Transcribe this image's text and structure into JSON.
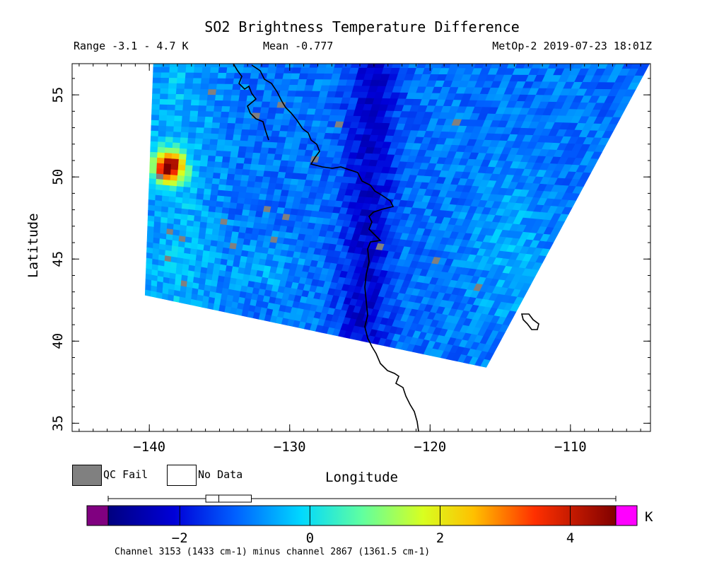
{
  "header": {
    "title": "SO2 Brightness Temperature Difference",
    "range": "Range -3.1 - 4.7 K",
    "mean": "Mean -0.777",
    "satellite": "MetOp-2 2019-07-23 18:01Z"
  },
  "axes": {
    "xlabel": "Longitude",
    "ylabel": "Latitude",
    "x_ticks": [
      -140,
      -130,
      -120,
      -110
    ],
    "y_ticks": [
      35,
      40,
      45,
      50,
      55
    ],
    "x_range": [
      -145.5,
      -104.3
    ],
    "y_range": [
      34.5,
      56.9
    ]
  },
  "legend": {
    "qc_fail": "QC Fail",
    "no_data": "No Data",
    "qc_color": "#808080"
  },
  "colorbar": {
    "unit": "K",
    "range": [
      -3.1,
      4.7
    ],
    "ticks": [
      -2,
      0,
      2,
      4
    ],
    "under_color": "#800080",
    "over_color": "#ff00ff",
    "note": "Channel 3153 (1433 cm-1) minus channel 2867 (1361.5 cm-1)",
    "box_whisker": {
      "min": -3.1,
      "q1": -1.6,
      "median": -1.4,
      "q3": -0.9,
      "max": 4.7
    }
  },
  "swath": {
    "corners": [
      [
        -139.7,
        57.0
      ],
      [
        -104.3,
        57.0
      ],
      [
        -116.0,
        38.4
      ],
      [
        -140.3,
        42.8
      ]
    ],
    "hot_spot": {
      "lon": -138.6,
      "lat": 50.6
    }
  }
}
